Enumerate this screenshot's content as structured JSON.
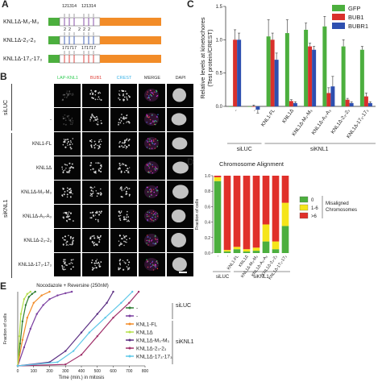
{
  "panels": {
    "a": "A",
    "b": "B",
    "c": "C",
    "d": "D",
    "e": "E"
  },
  "panel_a": {
    "numbers_top": [
      "12",
      "13",
      "14",
      "12",
      "13",
      "14"
    ],
    "numbers_mid": [
      "2",
      "2",
      "2",
      "2",
      "2"
    ],
    "numbers_bot": [
      "17",
      "17",
      "17",
      "17",
      "17",
      "17"
    ],
    "constructs": [
      "KNL1Δ-M₃-M₃",
      "KNL1Δ-2₃-2₃",
      "KNL1Δ-17₃-17₃"
    ]
  },
  "panel_b": {
    "columns": [
      "LAP-KNL1",
      "BUB1",
      "CREST",
      "MERGE",
      "DAPI"
    ],
    "column_colors": [
      "#33cc55",
      "#e0443c",
      "#3ab3e8",
      "#cccccc",
      "#cccccc"
    ],
    "group_siluc": "siLUC",
    "group_siknl1": "siKNL1",
    "rows": [
      "-",
      "KNL1-FL",
      "KNL1Δ",
      "KNL1Δ-M₃-M₃",
      "KNL1Δ-A₃-A₃",
      "KNL1Δ-2₃-2₃",
      "KNL1Δ-17₃-17₃"
    ]
  },
  "panel_c": {
    "ylabel1": "Relative levels at kinetochores",
    "ylabel2": "(Test protein/CREST)",
    "group_siluc": "siLUC",
    "group_siknl1": "siKNL1"
  },
  "panel_d": {
    "title": "Chromosome Alignment",
    "ylabel": "Fraction of cells",
    "legend_title": "Misaligned Chromosomes",
    "group_siluc": "siLUC",
    "group_siknl1": "siKNL1"
  },
  "panel_e": {
    "title": "Nocodazole + Reversine (250nM)",
    "ylabel": "Fraction of cells",
    "xlabel": "Time (min.) in mitosis",
    "group_siluc": "siLUC",
    "group_siknl1": "siKNL1"
  },
  "chart_data": [
    {
      "type": "bar",
      "panel": "C",
      "ylabel": "Relative levels at kinetochores (Test protein/CREST)",
      "ylim": [
        0,
        1.5
      ],
      "yticks": [
        0,
        0.5,
        1.0,
        1.5
      ],
      "categories": [
        "-",
        "-",
        "KNL1-FL",
        "KNL1Δ",
        "KNL1Δ-M₃-M₃",
        "KNL1Δ-A₃-A₃",
        "KNL1Δ-2₃-2₃",
        "KNL1Δ-17₃-17₃"
      ],
      "series": [
        {
          "name": "GFP",
          "color": "#4caf3e",
          "values": [
            0,
            0,
            1.05,
            1.1,
            1.15,
            1.2,
            0.9,
            0.85
          ],
          "errors": [
            0,
            0,
            0.25,
            0.2,
            0.1,
            0.15,
            0.1,
            0.05
          ]
        },
        {
          "name": "BUB1",
          "color": "#d9302c",
          "values": [
            1.0,
            0.0,
            1.0,
            0.08,
            0.9,
            0.2,
            0.1,
            0.15
          ],
          "errors": [
            0.15,
            0.02,
            0.1,
            0.02,
            0.05,
            0.08,
            0.02,
            0.05
          ]
        },
        {
          "name": "BUBR1",
          "color": "#2e4fb0",
          "values": [
            1.0,
            -0.05,
            0.7,
            0.05,
            0.85,
            0.3,
            0.05,
            0.05
          ],
          "errors": [
            0.1,
            0.05,
            0.1,
            0.02,
            0.05,
            0.15,
            0.02,
            0.02
          ]
        }
      ]
    },
    {
      "type": "bar",
      "panel": "D",
      "stacked": true,
      "title": "Chromosome Alignment",
      "ylabel": "Fraction of cells",
      "ylim": [
        0,
        1
      ],
      "yticks": [
        0,
        0.2,
        0.4,
        0.6,
        0.8,
        1.0
      ],
      "categories": [
        "-",
        "-",
        "KNL1-FL",
        "KNL1Δ",
        "KNL1Δ-M₃-M₃",
        "KNL1Δ-A₃-A₃",
        "KNL1Δ-2₃-2₃",
        "KNL1Δ-17₃-17₃"
      ],
      "series": [
        {
          "name": "0",
          "color": "#4caf3e",
          "values": [
            0.93,
            0.02,
            0.05,
            0.02,
            0.03,
            0.15,
            0.05,
            0.35
          ]
        },
        {
          "name": "1-6",
          "color": "#f5e51a",
          "values": [
            0.05,
            0.02,
            0.03,
            0.03,
            0.04,
            0.22,
            0.1,
            0.3
          ]
        },
        {
          "name": ">6",
          "color": "#e0302a",
          "values": [
            0.02,
            0.96,
            0.92,
            0.95,
            0.93,
            0.63,
            0.85,
            0.35
          ]
        }
      ]
    },
    {
      "type": "line",
      "panel": "E",
      "title": "Nocodazole + Reversine (250nM)",
      "xlabel": "Time (min.) in mitosis",
      "ylabel": "Fraction of cells",
      "xlim": [
        0,
        800
      ],
      "ylim": [
        0,
        1
      ],
      "xticks": [
        0,
        100,
        200,
        300,
        400,
        500,
        600,
        700,
        800
      ],
      "series": [
        {
          "name": "-",
          "color": "#2e7d32",
          "x": [
            0,
            15,
            30,
            50,
            70,
            90,
            110
          ],
          "y": [
            0,
            0.3,
            0.6,
            0.82,
            0.93,
            0.97,
            1.0
          ]
        },
        {
          "name": "-",
          "color": "#7b3fa0",
          "x": [
            0,
            40,
            80,
            120,
            160,
            200,
            250,
            300,
            340
          ],
          "y": [
            0,
            0.25,
            0.5,
            0.7,
            0.82,
            0.9,
            0.95,
            0.98,
            1.0
          ]
        },
        {
          "name": "KNL1-FL",
          "color": "#f28c28",
          "x": [
            0,
            30,
            60,
            100,
            150,
            200
          ],
          "y": [
            0,
            0.35,
            0.65,
            0.85,
            0.95,
            1.0
          ]
        },
        {
          "name": "KNL1Δ",
          "color": "#b5e04a",
          "x": [
            0,
            10,
            20,
            40,
            60,
            80
          ],
          "y": [
            0,
            0.4,
            0.7,
            0.9,
            0.97,
            1.0
          ]
        },
        {
          "name": "KNL1Δ-M₃-M₃",
          "color": "#5a2d82",
          "x": [
            0,
            200,
            300,
            400,
            500,
            560,
            600
          ],
          "y": [
            0,
            0.05,
            0.2,
            0.45,
            0.7,
            0.85,
            1.0
          ]
        },
        {
          "name": "KNL1Δ-2₃-2₃",
          "color": "#a0306a",
          "x": [
            0,
            300,
            400,
            500,
            600,
            700,
            760
          ],
          "y": [
            0,
            0.02,
            0.15,
            0.4,
            0.65,
            0.85,
            1.0
          ]
        },
        {
          "name": "KNL1Δ-17₃-17₃",
          "color": "#5ec8e8",
          "x": [
            0,
            250,
            350,
            450,
            550,
            650,
            720
          ],
          "y": [
            0,
            0.05,
            0.2,
            0.45,
            0.65,
            0.85,
            1.0
          ]
        }
      ]
    }
  ]
}
